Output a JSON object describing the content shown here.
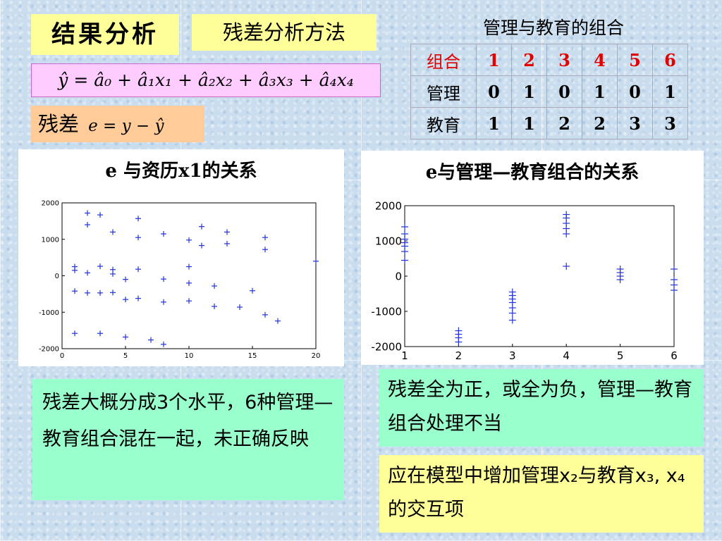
{
  "headings": {
    "results": "结果分析",
    "residual_method": "残差分析方法"
  },
  "formula": {
    "text": "ŷ = â₀ + â₁x₁ + â₂x₂ + â₃x₃ + â₄x₄"
  },
  "residual_def": {
    "label": "残差",
    "expr": "e = y − ŷ"
  },
  "combo_table": {
    "title": "管理与教育的组合",
    "header": [
      "组合",
      "1",
      "2",
      "3",
      "4",
      "5",
      "6"
    ],
    "rows": [
      [
        "管理",
        "0",
        "1",
        "0",
        "1",
        "0",
        "1"
      ],
      [
        "教育",
        "1",
        "1",
        "2",
        "2",
        "3",
        "3"
      ]
    ]
  },
  "notes": {
    "left": "残差大概分成3个水平，6种管理—教育组合混在一起，未正确反映",
    "right_top": "残差全为正，或全为负，管理—教育组合处理不当",
    "right_bottom": "应在模型中增加管理x₂与教育x₃, x₄的交互项"
  },
  "colors": {
    "marker": "#2233dd",
    "table_header": "#e00000",
    "yellow_box": "#ffff99",
    "green_box": "#99ffcc"
  },
  "chart_data": [
    {
      "type": "scatter",
      "title": "e 与资历x1的关系",
      "xlabel": "",
      "ylabel": "",
      "xlim": [
        0,
        20
      ],
      "ylim": [
        -2000,
        2000
      ],
      "xticks": [
        "0",
        "5",
        "10",
        "15",
        "20"
      ],
      "yticks": [
        "2000",
        "1000",
        "0",
        "-1000",
        "-2000"
      ],
      "marker": "+",
      "points": [
        [
          1,
          250
        ],
        [
          1,
          150
        ],
        [
          1,
          -420
        ],
        [
          1,
          -1580
        ],
        [
          2,
          1720
        ],
        [
          2,
          1400
        ],
        [
          2,
          80
        ],
        [
          2,
          -470
        ],
        [
          3,
          1670
        ],
        [
          3,
          260
        ],
        [
          3,
          -470
        ],
        [
          3,
          -1580
        ],
        [
          4,
          1200
        ],
        [
          4,
          170
        ],
        [
          4,
          50
        ],
        [
          4,
          -460
        ],
        [
          5,
          -100
        ],
        [
          5,
          -650
        ],
        [
          5,
          -1680
        ],
        [
          6,
          1570
        ],
        [
          6,
          1050
        ],
        [
          6,
          180
        ],
        [
          6,
          -620
        ],
        [
          7,
          -1760
        ],
        [
          8,
          1150
        ],
        [
          8,
          -90
        ],
        [
          8,
          -720
        ],
        [
          8,
          -1880
        ],
        [
          10,
          980
        ],
        [
          10,
          250
        ],
        [
          10,
          -200
        ],
        [
          10,
          -690
        ],
        [
          11,
          1350
        ],
        [
          11,
          830
        ],
        [
          12,
          -280
        ],
        [
          12,
          -840
        ],
        [
          13,
          1200
        ],
        [
          13,
          880
        ],
        [
          14,
          -860
        ],
        [
          15,
          -410
        ],
        [
          16,
          1050
        ],
        [
          16,
          720
        ],
        [
          16,
          -1070
        ],
        [
          17,
          -1240
        ],
        [
          20,
          400
        ]
      ]
    },
    {
      "type": "scatter",
      "title": "e与管理—教育组合的关系",
      "xlabel": "",
      "ylabel": "",
      "xlim": [
        1,
        6
      ],
      "ylim": [
        -2000,
        2000
      ],
      "xticks": [
        "1",
        "2",
        "3",
        "4",
        "5",
        "6"
      ],
      "yticks": [
        "2000",
        "1000",
        "0",
        "-1000",
        "-2000"
      ],
      "marker": "+",
      "points": [
        [
          1,
          1400
        ],
        [
          1,
          1200
        ],
        [
          1,
          1050
        ],
        [
          1,
          950
        ],
        [
          1,
          850
        ],
        [
          1,
          700
        ],
        [
          1,
          450
        ],
        [
          2,
          -1550
        ],
        [
          2,
          -1650
        ],
        [
          2,
          -1750
        ],
        [
          2,
          -1870
        ],
        [
          3,
          -450
        ],
        [
          3,
          -550
        ],
        [
          3,
          -650
        ],
        [
          3,
          -750
        ],
        [
          3,
          -900
        ],
        [
          3,
          -1050
        ],
        [
          3,
          -1250
        ],
        [
          4,
          1750
        ],
        [
          4,
          1650
        ],
        [
          4,
          1500
        ],
        [
          4,
          1350
        ],
        [
          4,
          1200
        ],
        [
          4,
          280
        ],
        [
          5,
          200
        ],
        [
          5,
          100
        ],
        [
          5,
          0
        ],
        [
          5,
          -100
        ],
        [
          6,
          200
        ],
        [
          6,
          -100
        ],
        [
          6,
          -250
        ],
        [
          6,
          -400
        ]
      ]
    }
  ]
}
